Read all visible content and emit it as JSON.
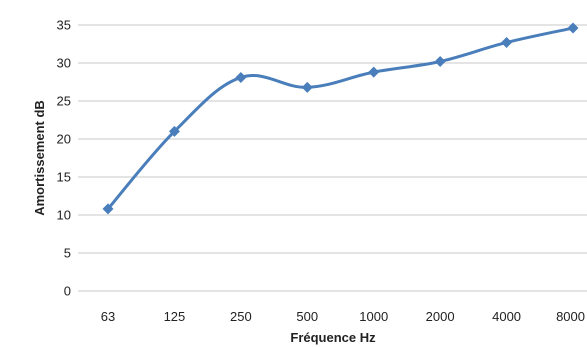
{
  "chart_data": {
    "type": "line",
    "categories": [
      "63",
      "125",
      "250",
      "500",
      "1000",
      "2000",
      "4000",
      "8000"
    ],
    "series": [
      {
        "values": [
          10.8,
          21.0,
          28.1,
          26.8,
          28.8,
          30.2,
          32.7,
          34.6
        ]
      }
    ],
    "title": "",
    "xlabel": "Fréquence Hz",
    "ylabel": "Amortissement dB",
    "ylim": [
      0,
      35
    ],
    "yticks": [
      0,
      5,
      10,
      15,
      20,
      25,
      30,
      35
    ],
    "grid": true,
    "smooth": true,
    "line_color": "#4a7ebb",
    "grid_color": "#c8c8c8"
  }
}
